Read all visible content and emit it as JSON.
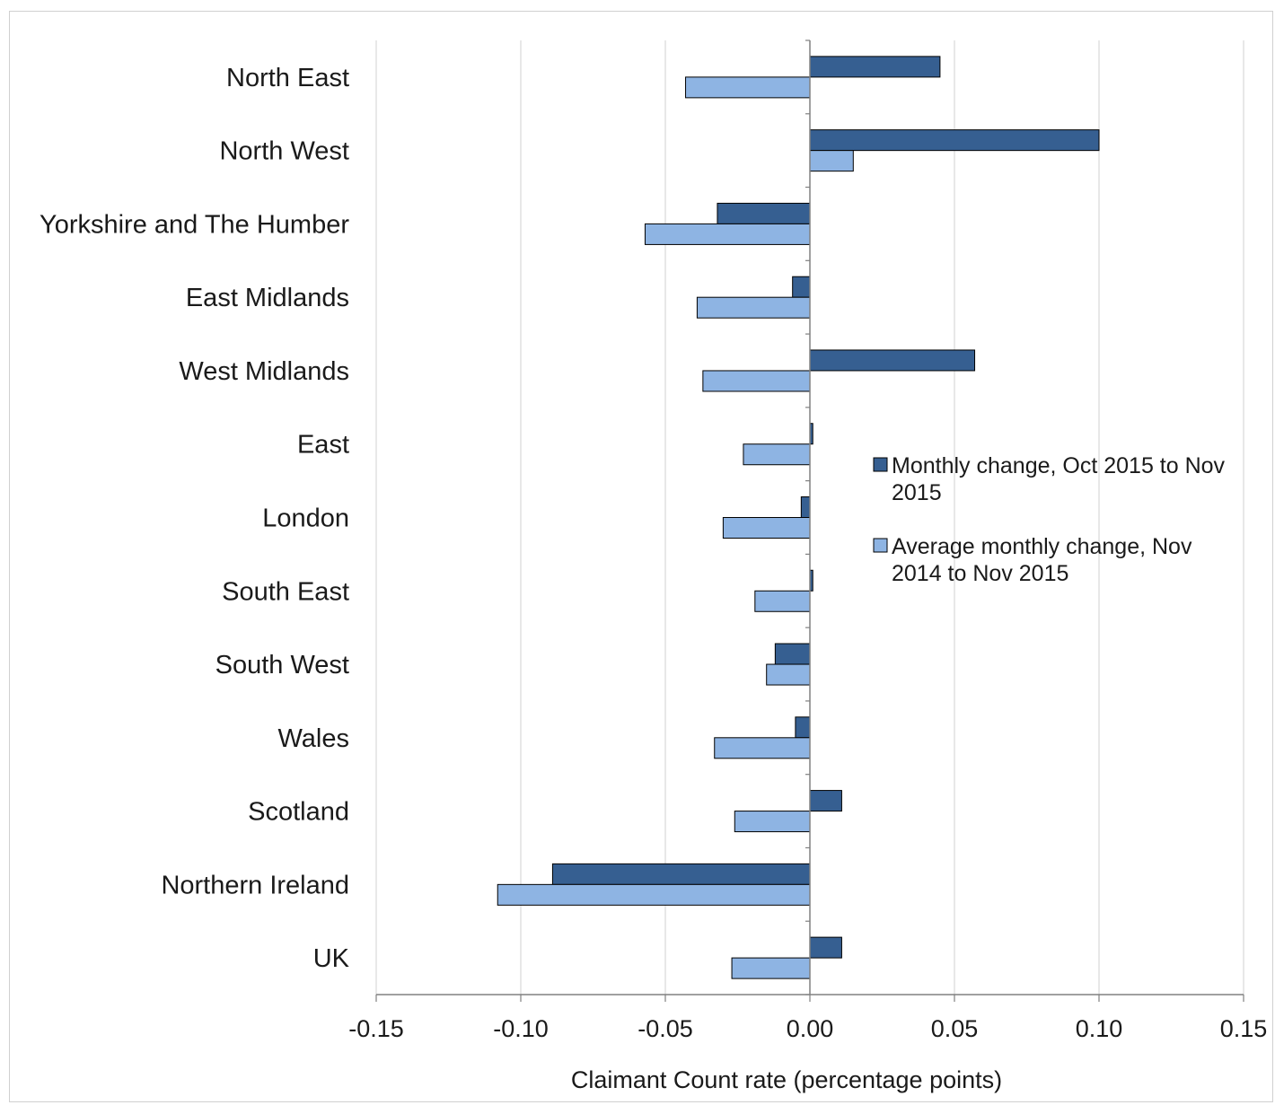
{
  "chart_data": {
    "type": "bar",
    "orientation": "horizontal",
    "title": "",
    "xlabel": "Claimant Count rate (percentage points)",
    "ylabel": "",
    "xlim": [
      -0.15,
      0.15
    ],
    "x_ticks": [
      -0.15,
      -0.1,
      -0.05,
      0.0,
      0.05,
      0.1,
      0.15
    ],
    "x_tick_labels": [
      "-0.15",
      "-0.10",
      "-0.05",
      "0.00",
      "0.05",
      "0.10",
      "0.15"
    ],
    "grid": "vertical",
    "legend_position": "right",
    "categories": [
      "North East",
      "North West",
      "Yorkshire and The Humber",
      "East Midlands",
      "West Midlands",
      "East",
      "London",
      "South East",
      "South West",
      "Wales",
      "Scotland",
      "Northern Ireland",
      "UK"
    ],
    "series": [
      {
        "name": "Monthly change, Oct 2015 to Nov 2015",
        "legend_lines": [
          "Monthly change, Oct 2015 to Nov",
          "2015"
        ],
        "color": "#365f91",
        "values": [
          0.045,
          0.1,
          -0.032,
          -0.006,
          0.057,
          0.001,
          -0.003,
          0.001,
          -0.012,
          -0.005,
          0.011,
          -0.089,
          0.011
        ]
      },
      {
        "name": "Average monthly change, Nov 2014 to Nov 2015",
        "legend_lines": [
          "Average monthly change, Nov",
          "2014 to Nov 2015"
        ],
        "color": "#8eb4e3",
        "values": [
          -0.043,
          0.015,
          -0.057,
          -0.039,
          -0.037,
          -0.023,
          -0.03,
          -0.019,
          -0.015,
          -0.033,
          -0.026,
          -0.108,
          -0.027
        ]
      }
    ]
  }
}
